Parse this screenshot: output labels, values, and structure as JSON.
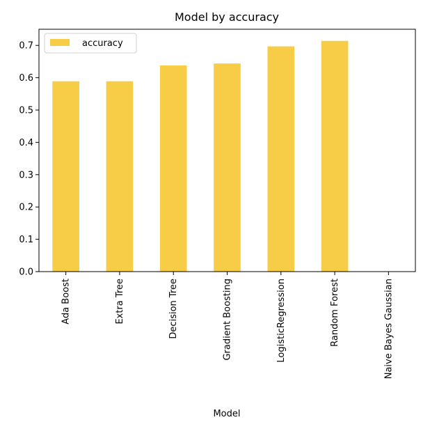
{
  "chart_data": {
    "type": "bar",
    "title": "Model by accuracy",
    "xlabel": "Model",
    "ylabel": "",
    "categories": [
      "Ada Boost",
      "Extra Tree",
      "Decision Tree",
      "Gradient Boosting",
      "LogisticRegression",
      "Random Forest",
      "Naive Bayes Gaussian"
    ],
    "series": [
      {
        "name": "accuracy",
        "values": [
          0.589,
          0.589,
          0.638,
          0.644,
          0.697,
          0.714,
          0.0
        ],
        "color": "#f7cd47"
      }
    ],
    "ylim": [
      0,
      0.75
    ],
    "yticks": [
      "0.0",
      "0.1",
      "0.2",
      "0.3",
      "0.4",
      "0.5",
      "0.6",
      "0.7"
    ],
    "legend": "top-left",
    "grid": false
  }
}
